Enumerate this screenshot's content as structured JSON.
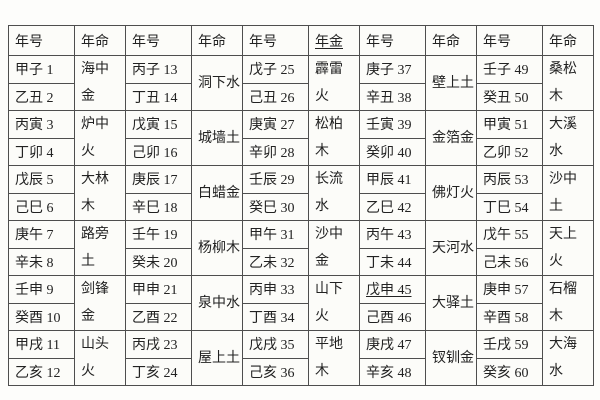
{
  "colors": {
    "border": "#4e4e4e",
    "text": "#222222",
    "background": "#fdfdfb"
  },
  "table": {
    "header": {
      "year": "年号",
      "fate": "年命",
      "fate_alt": "年金"
    },
    "cols": [
      {
        "pairs": [
          {
            "top": "甲子 1",
            "bottom": "乙丑 2",
            "fate_lines": [
              "海中",
              "金"
            ]
          },
          {
            "top": "丙寅 3",
            "bottom": "丁卯 4",
            "fate_lines": [
              "炉中",
              "火"
            ]
          },
          {
            "top": "戊辰 5",
            "bottom": "己巳 6",
            "fate_lines": [
              "大林",
              "木"
            ]
          },
          {
            "top": "庚午 7",
            "bottom": "辛未 8",
            "fate_lines": [
              "路旁",
              "土"
            ]
          },
          {
            "top": "壬申 9",
            "bottom": "癸酉 10",
            "fate_lines": [
              "剑锋",
              "金"
            ]
          },
          {
            "top": "甲戌 11",
            "bottom": "乙亥 12",
            "fate_lines": [
              "山头",
              "火"
            ]
          }
        ]
      },
      {
        "pairs": [
          {
            "top": "丙子 13",
            "bottom": "丁丑 14",
            "fate_lines": [
              "洞下水"
            ]
          },
          {
            "top": "戊寅 15",
            "bottom": "己卯 16",
            "fate_lines": [
              "城墙土"
            ]
          },
          {
            "top": "庚辰 17",
            "bottom": "辛巳 18",
            "fate_lines": [
              "白蜡金"
            ]
          },
          {
            "top": "壬午 19",
            "bottom": "癸未 20",
            "fate_lines": [
              "杨柳木"
            ]
          },
          {
            "top": "甲申 21",
            "bottom": "乙酉 22",
            "fate_lines": [
              "泉中水"
            ]
          },
          {
            "top": "丙戌 23",
            "bottom": "丁亥 24",
            "fate_lines": [
              "屋上土"
            ]
          }
        ]
      },
      {
        "pairs": [
          {
            "top": "戊子 25",
            "bottom": "己丑 26",
            "fate_lines": [
              "霹雷",
              "火"
            ]
          },
          {
            "top": "庚寅 27",
            "bottom": "辛卯 28",
            "fate_lines": [
              "松柏",
              "木"
            ]
          },
          {
            "top": "壬辰 29",
            "bottom": "癸巳 30",
            "fate_lines": [
              "长流",
              "水"
            ]
          },
          {
            "top": "甲午 31",
            "bottom": "乙未 32",
            "fate_lines": [
              "沙中",
              "金"
            ]
          },
          {
            "top": "丙申 33",
            "bottom": "丁酉 34",
            "fate_lines": [
              "山下",
              "火"
            ]
          },
          {
            "top": "戊戌 35",
            "bottom": "己亥 36",
            "fate_lines": [
              "平地",
              "木"
            ]
          }
        ]
      },
      {
        "pairs": [
          {
            "top": "庚子 37",
            "bottom": "辛丑 38",
            "fate_lines": [
              "壁上土"
            ]
          },
          {
            "top": "壬寅 39",
            "bottom": "癸卯 40",
            "fate_lines": [
              "金箔金"
            ]
          },
          {
            "top": "甲辰 41",
            "bottom": "乙巳 42",
            "fate_lines": [
              "佛灯火"
            ]
          },
          {
            "top": "丙午 43",
            "bottom": "丁未 44",
            "fate_lines": [
              "天河水"
            ]
          },
          {
            "top": "戊申 45",
            "bottom": "己酉 46",
            "fate_lines": [
              "大驿土"
            ]
          },
          {
            "top": "庚戌 47",
            "bottom": "辛亥 48",
            "fate_lines": [
              "钗钏金"
            ]
          }
        ]
      },
      {
        "pairs": [
          {
            "top": "壬子 49",
            "bottom": "癸丑 50",
            "fate_lines": [
              "桑松",
              "木"
            ]
          },
          {
            "top": "甲寅 51",
            "bottom": "乙卯 52",
            "fate_lines": [
              "大溪",
              "水"
            ]
          },
          {
            "top": "丙辰 53",
            "bottom": "丁巳 54",
            "fate_lines": [
              "沙中",
              "土"
            ]
          },
          {
            "top": "戊午 55",
            "bottom": "己未 56",
            "fate_lines": [
              "天上",
              "火"
            ]
          },
          {
            "top": "庚申 57",
            "bottom": "辛酉 58",
            "fate_lines": [
              "石榴",
              "木"
            ]
          },
          {
            "top": "壬戌 59",
            "bottom": "癸亥 60",
            "fate_lines": [
              "大海",
              "水"
            ]
          }
        ]
      }
    ]
  }
}
